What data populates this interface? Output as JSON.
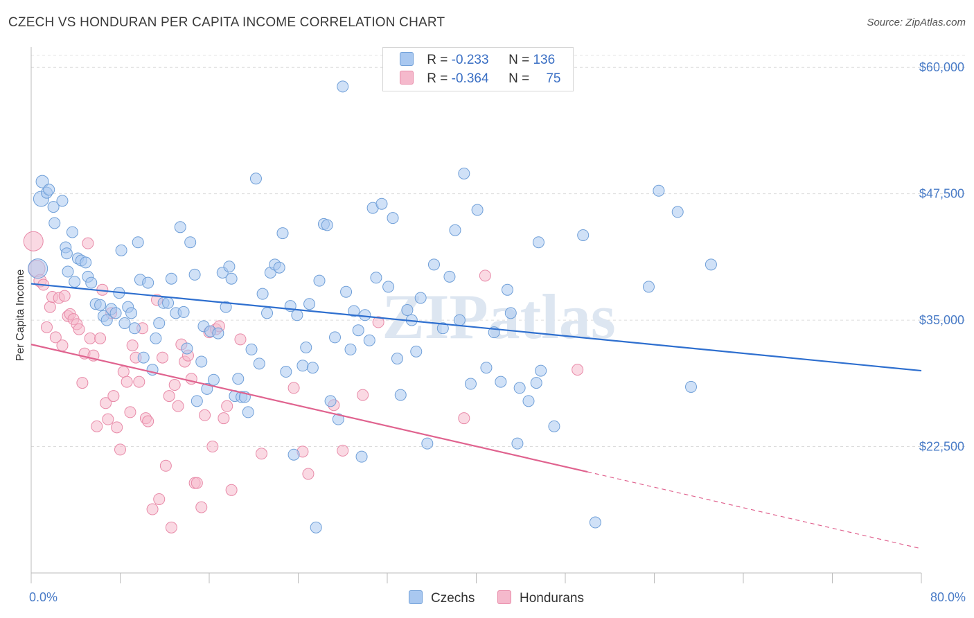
{
  "header": {
    "title": "CZECH VS HONDURAN PER CAPITA INCOME CORRELATION CHART",
    "source": "Source: ZipAtlas.com"
  },
  "watermark": "ZIPatlas",
  "colors": {
    "czech_fill": "#a9c8f0",
    "czech_stroke": "#6f9fd8",
    "czech_line": "#2e6fcf",
    "honduran_fill": "#f5b9cc",
    "honduran_stroke": "#e88aa8",
    "honduran_line": "#e0638f",
    "axis_text": "#4a7cc7"
  },
  "legend": {
    "czech": {
      "r_label": "R = ",
      "r_value": "-0.233",
      "n_label": "N = ",
      "n_value": "136"
    },
    "honduran": {
      "r_label": "R = ",
      "r_value": "-0.364",
      "n_label": "N = ",
      "n_value": "75"
    }
  },
  "chart_data": {
    "type": "scatter",
    "title": "CZECH VS HONDURAN PER CAPITA INCOME CORRELATION CHART",
    "xlabel": "",
    "ylabel": "Per Capita Income",
    "xlim": [
      0,
      80
    ],
    "ylim": [
      10000,
      62000
    ],
    "x_tick_labels": [
      "0.0%",
      "80.0%"
    ],
    "y_ticks": [
      22500,
      35000,
      47500,
      60000
    ],
    "y_tick_labels": [
      "$22,500",
      "$35,000",
      "$47,500",
      "$60,000"
    ],
    "grid": "horizontal dashed",
    "legend_position": "top-center",
    "series": [
      {
        "name": "Czechs",
        "trend": {
          "x": [
            0,
            80
          ],
          "y": [
            38600,
            30000
          ]
        },
        "points": [
          [
            0.6,
            40100,
            14
          ],
          [
            0.9,
            47000,
            11
          ],
          [
            1.0,
            48700,
            9
          ],
          [
            1.4,
            47600,
            8
          ],
          [
            1.6,
            47900,
            8
          ],
          [
            2.0,
            46200,
            8
          ],
          [
            2.1,
            44600,
            8
          ],
          [
            2.8,
            46800,
            8
          ],
          [
            3.1,
            42200,
            8
          ],
          [
            3.2,
            41600,
            8
          ],
          [
            3.3,
            39800,
            8
          ],
          [
            3.7,
            43700,
            8
          ],
          [
            3.9,
            38800,
            8
          ],
          [
            4.2,
            41100,
            8
          ],
          [
            4.5,
            40900,
            8
          ],
          [
            4.9,
            40700,
            8
          ],
          [
            5.1,
            39300,
            8
          ],
          [
            5.4,
            38700,
            8
          ],
          [
            5.8,
            36600,
            8
          ],
          [
            6.2,
            36500,
            8
          ],
          [
            6.5,
            35400,
            8
          ],
          [
            6.8,
            35000,
            8
          ],
          [
            7.2,
            36100,
            8
          ],
          [
            7.6,
            35700,
            8
          ],
          [
            7.9,
            37700,
            8
          ],
          [
            8.1,
            41900,
            8
          ],
          [
            8.4,
            34700,
            8
          ],
          [
            8.7,
            36300,
            8
          ],
          [
            9.0,
            35700,
            8
          ],
          [
            9.3,
            34200,
            8
          ],
          [
            9.6,
            42700,
            8
          ],
          [
            9.8,
            39000,
            8
          ],
          [
            10.1,
            31300,
            8
          ],
          [
            10.5,
            38700,
            8
          ],
          [
            10.9,
            30100,
            8
          ],
          [
            11.2,
            33200,
            8
          ],
          [
            11.5,
            34700,
            8
          ],
          [
            11.9,
            36700,
            8
          ],
          [
            12.3,
            36700,
            8
          ],
          [
            12.6,
            39100,
            8
          ],
          [
            13.0,
            35700,
            8
          ],
          [
            13.4,
            44200,
            8
          ],
          [
            13.7,
            35800,
            8
          ],
          [
            14.0,
            32200,
            8
          ],
          [
            14.3,
            42700,
            8
          ],
          [
            14.7,
            39500,
            8
          ],
          [
            14.9,
            27000,
            8
          ],
          [
            15.3,
            30900,
            8
          ],
          [
            15.5,
            34400,
            8
          ],
          [
            15.8,
            28200,
            8
          ],
          [
            16.1,
            33900,
            8
          ],
          [
            16.4,
            29100,
            8
          ],
          [
            16.8,
            33700,
            8
          ],
          [
            17.2,
            39700,
            8
          ],
          [
            17.5,
            36300,
            8
          ],
          [
            17.8,
            40300,
            8
          ],
          [
            18.0,
            39100,
            8
          ],
          [
            18.3,
            27500,
            8
          ],
          [
            18.6,
            29200,
            8
          ],
          [
            18.9,
            27400,
            8
          ],
          [
            19.2,
            27400,
            8
          ],
          [
            19.5,
            25900,
            8
          ],
          [
            19.8,
            32100,
            8
          ],
          [
            20.2,
            49000,
            8
          ],
          [
            20.5,
            30700,
            8
          ],
          [
            20.8,
            37600,
            8
          ],
          [
            21.2,
            35700,
            8
          ],
          [
            21.5,
            39700,
            8
          ],
          [
            21.9,
            40500,
            8
          ],
          [
            22.3,
            40200,
            8
          ],
          [
            22.6,
            43600,
            8
          ],
          [
            22.9,
            29900,
            8
          ],
          [
            23.3,
            36400,
            8
          ],
          [
            23.6,
            21700,
            8
          ],
          [
            23.9,
            35500,
            8
          ],
          [
            24.4,
            30500,
            8
          ],
          [
            24.7,
            32300,
            8
          ],
          [
            25.0,
            36600,
            8
          ],
          [
            25.3,
            30300,
            8
          ],
          [
            25.6,
            14500,
            8
          ],
          [
            25.9,
            38900,
            8
          ],
          [
            26.3,
            44500,
            8
          ],
          [
            26.6,
            44400,
            8
          ],
          [
            26.9,
            27000,
            8
          ],
          [
            27.3,
            33300,
            8
          ],
          [
            27.6,
            25200,
            8
          ],
          [
            28.0,
            58100,
            8
          ],
          [
            28.3,
            37800,
            8
          ],
          [
            28.7,
            32100,
            8
          ],
          [
            29.0,
            35900,
            8
          ],
          [
            29.4,
            34000,
            8
          ],
          [
            29.7,
            21500,
            8
          ],
          [
            30.0,
            35500,
            8
          ],
          [
            30.4,
            33000,
            8
          ],
          [
            30.7,
            46100,
            8
          ],
          [
            31.0,
            39200,
            8
          ],
          [
            31.5,
            46500,
            8
          ],
          [
            32.1,
            38300,
            8
          ],
          [
            32.5,
            45100,
            8
          ],
          [
            32.9,
            31200,
            8
          ],
          [
            33.2,
            27600,
            8
          ],
          [
            33.8,
            36000,
            8
          ],
          [
            34.2,
            35000,
            8
          ],
          [
            34.6,
            31900,
            8
          ],
          [
            35.0,
            37200,
            8
          ],
          [
            35.6,
            22800,
            8
          ],
          [
            36.2,
            40500,
            8
          ],
          [
            37.0,
            34200,
            8
          ],
          [
            37.6,
            39300,
            8
          ],
          [
            38.1,
            43900,
            8
          ],
          [
            38.5,
            35000,
            8
          ],
          [
            38.9,
            49500,
            8
          ],
          [
            39.5,
            28700,
            8
          ],
          [
            40.1,
            45900,
            8
          ],
          [
            40.9,
            30300,
            8
          ],
          [
            41.6,
            33800,
            8
          ],
          [
            42.2,
            28900,
            8
          ],
          [
            42.8,
            38000,
            8
          ],
          [
            43.1,
            35700,
            8
          ],
          [
            43.7,
            22800,
            8
          ],
          [
            43.9,
            28300,
            8
          ],
          [
            44.7,
            27000,
            8
          ],
          [
            45.4,
            28800,
            8
          ],
          [
            45.6,
            42700,
            8
          ],
          [
            45.8,
            30000,
            8
          ],
          [
            47.0,
            24500,
            8
          ],
          [
            49.6,
            43400,
            8
          ],
          [
            50.7,
            15000,
            8
          ],
          [
            55.5,
            38300,
            8
          ],
          [
            56.4,
            47800,
            8
          ],
          [
            58.1,
            45700,
            8
          ],
          [
            59.3,
            28400,
            8
          ],
          [
            61.1,
            40500,
            8
          ]
        ]
      },
      {
        "name": "Hondurans",
        "trend": {
          "x": [
            0,
            50
          ],
          "y": [
            32600,
            20000
          ]
        },
        "trend_dashed": {
          "x": [
            50,
            80
          ],
          "y": [
            20000,
            12400
          ]
        },
        "points": [
          [
            0.2,
            42800,
            14
          ],
          [
            0.5,
            40100,
            12
          ],
          [
            0.8,
            38900,
            9
          ],
          [
            1.1,
            38500,
            8
          ],
          [
            1.4,
            34300,
            8
          ],
          [
            1.7,
            36300,
            8
          ],
          [
            1.9,
            37300,
            8
          ],
          [
            2.2,
            33300,
            8
          ],
          [
            2.5,
            37200,
            8
          ],
          [
            2.8,
            32500,
            8
          ],
          [
            3.0,
            37400,
            8
          ],
          [
            3.3,
            35400,
            8
          ],
          [
            3.5,
            35600,
            8
          ],
          [
            3.8,
            35100,
            8
          ],
          [
            4.1,
            34600,
            8
          ],
          [
            4.3,
            34100,
            8
          ],
          [
            4.6,
            28800,
            8
          ],
          [
            4.8,
            31700,
            8
          ],
          [
            5.1,
            42600,
            8
          ],
          [
            5.3,
            33200,
            8
          ],
          [
            5.6,
            31500,
            8
          ],
          [
            5.9,
            24500,
            8
          ],
          [
            6.2,
            33200,
            8
          ],
          [
            6.4,
            38000,
            8
          ],
          [
            6.7,
            26800,
            8
          ],
          [
            6.9,
            25200,
            8
          ],
          [
            7.2,
            35700,
            8
          ],
          [
            7.4,
            27500,
            8
          ],
          [
            7.7,
            24400,
            8
          ],
          [
            8.0,
            22200,
            8
          ],
          [
            8.3,
            29900,
            8
          ],
          [
            8.6,
            28900,
            8
          ],
          [
            8.9,
            25900,
            8
          ],
          [
            9.1,
            32500,
            8
          ],
          [
            9.4,
            31300,
            8
          ],
          [
            9.7,
            28900,
            8
          ],
          [
            10.0,
            34200,
            8
          ],
          [
            10.3,
            25300,
            8
          ],
          [
            10.5,
            25000,
            8
          ],
          [
            10.9,
            16300,
            8
          ],
          [
            11.3,
            37000,
            8
          ],
          [
            11.5,
            17300,
            8
          ],
          [
            11.8,
            31300,
            8
          ],
          [
            12.1,
            20600,
            8
          ],
          [
            12.4,
            27500,
            8
          ],
          [
            12.6,
            14500,
            8
          ],
          [
            12.9,
            28600,
            8
          ],
          [
            13.2,
            26500,
            8
          ],
          [
            13.5,
            32600,
            8
          ],
          [
            13.8,
            30900,
            8
          ],
          [
            14.1,
            31500,
            8
          ],
          [
            14.4,
            29200,
            8
          ],
          [
            14.7,
            18900,
            8
          ],
          [
            14.9,
            18900,
            8
          ],
          [
            15.3,
            16500,
            8
          ],
          [
            15.6,
            25600,
            8
          ],
          [
            16.0,
            33800,
            8
          ],
          [
            16.3,
            22500,
            8
          ],
          [
            16.6,
            34100,
            8
          ],
          [
            16.9,
            34400,
            8
          ],
          [
            17.3,
            25300,
            8
          ],
          [
            17.6,
            26500,
            8
          ],
          [
            18.0,
            18200,
            8
          ],
          [
            18.8,
            33100,
            8
          ],
          [
            20.7,
            21800,
            8
          ],
          [
            23.6,
            28300,
            8
          ],
          [
            24.4,
            22000,
            8
          ],
          [
            24.9,
            19800,
            8
          ],
          [
            27.2,
            26600,
            8
          ],
          [
            28.0,
            22100,
            8
          ],
          [
            29.8,
            27600,
            8
          ],
          [
            31.2,
            34800,
            8
          ],
          [
            38.9,
            25300,
            8
          ],
          [
            40.8,
            39400,
            8
          ],
          [
            49.1,
            30100,
            8
          ]
        ]
      }
    ]
  },
  "bottom_legend": {
    "czech": "Czechs",
    "honduran": "Hondurans"
  }
}
